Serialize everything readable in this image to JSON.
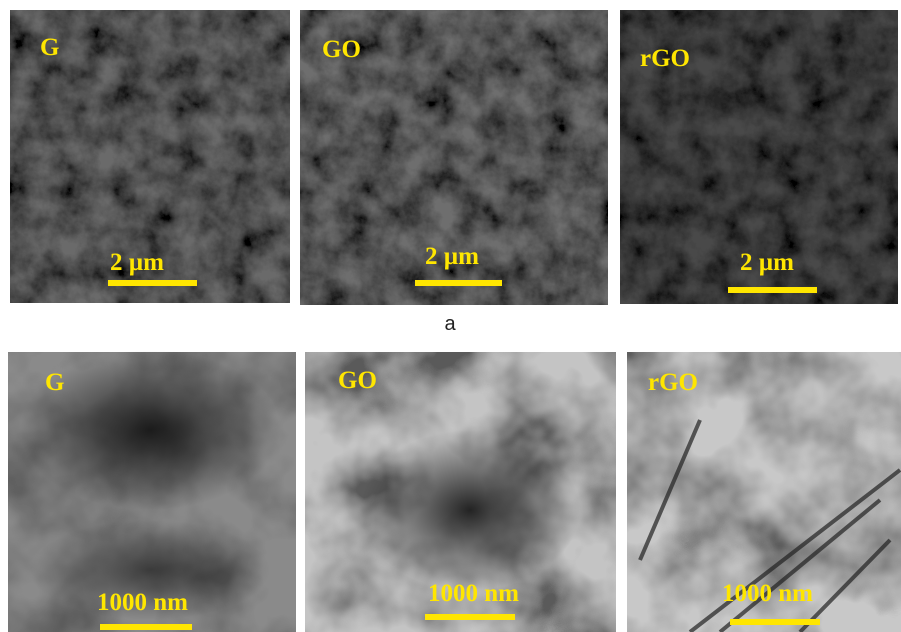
{
  "sem_panels": [
    {
      "label": "G",
      "scale_bar": "2 µm"
    },
    {
      "label": "GO",
      "scale_bar": "2 µm"
    },
    {
      "label": "rGO",
      "scale_bar": "2 µm"
    }
  ],
  "caption": "a",
  "tem_panels": [
    {
      "label": "G",
      "scale_bar": "1000 nm"
    },
    {
      "label": "GO",
      "scale_bar": "1000 nm"
    },
    {
      "label": "rGO",
      "scale_bar": "1000 nm"
    }
  ]
}
